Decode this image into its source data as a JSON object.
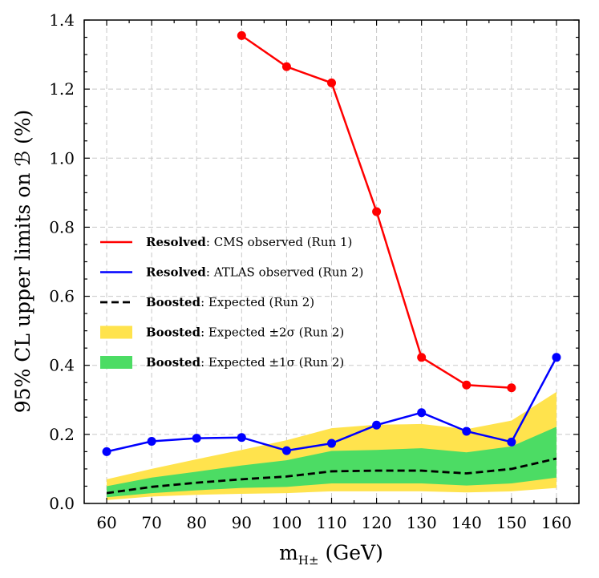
{
  "chart_data": {
    "type": "line",
    "xlabel": "m",
    "xlabel_sub": "H±",
    "xlabel_unit": "(GeV)",
    "ylabel": "95% CL upper limits on ℬ (%)",
    "xlim": [
      55,
      165
    ],
    "ylim": [
      0,
      1.4
    ],
    "xticks": [
      60,
      70,
      80,
      90,
      100,
      110,
      120,
      130,
      140,
      150,
      160
    ],
    "yticks": [
      0.0,
      0.2,
      0.4,
      0.6,
      0.8,
      1.0,
      1.2,
      1.4
    ],
    "ytick_labels": [
      "0.0",
      "0.2",
      "0.4",
      "0.6",
      "0.8",
      "1.0",
      "1.2",
      "1.4"
    ],
    "grid": true,
    "legend_position": "center-left",
    "series": [
      {
        "legend_bold": "Resolved",
        "legend_rest": ": CMS observed (Run 1)",
        "color": "#ff0000",
        "style": "solid-markers",
        "x": [
          90,
          100,
          110,
          120,
          130,
          140,
          150
        ],
        "y": [
          1.355,
          1.265,
          1.218,
          0.845,
          0.423,
          0.343,
          0.335
        ]
      },
      {
        "legend_bold": "Resolved",
        "legend_rest": ": ATLAS observed (Run 2)",
        "color": "#0000ff",
        "style": "solid-markers",
        "x": [
          60,
          70,
          80,
          90,
          100,
          110,
          120,
          130,
          140,
          150,
          160
        ],
        "y": [
          0.15,
          0.18,
          0.189,
          0.191,
          0.153,
          0.174,
          0.227,
          0.263,
          0.209,
          0.178,
          0.423
        ]
      },
      {
        "legend_bold": "Boosted",
        "legend_rest": ": Expected (Run 2)",
        "color": "#000000",
        "style": "dashed",
        "x": [
          60,
          70,
          80,
          90,
          100,
          110,
          120,
          130,
          140,
          150,
          160
        ],
        "y": [
          0.03,
          0.048,
          0.06,
          0.07,
          0.078,
          0.093,
          0.095,
          0.095,
          0.087,
          0.1,
          0.13
        ]
      }
    ],
    "bands": [
      {
        "legend_bold": "Boosted",
        "legend_rest": ": Expected ±2σ (Run 2)",
        "color": "#ffe34d",
        "x": [
          60,
          70,
          80,
          90,
          100,
          110,
          120,
          130,
          140,
          150,
          160
        ],
        "lower": [
          0.01,
          0.02,
          0.025,
          0.028,
          0.03,
          0.035,
          0.035,
          0.035,
          0.032,
          0.035,
          0.045
        ],
        "upper": [
          0.07,
          0.1,
          0.128,
          0.155,
          0.183,
          0.218,
          0.228,
          0.23,
          0.215,
          0.24,
          0.323
        ]
      },
      {
        "legend_bold": "Boosted",
        "legend_rest": ": Expected ±1σ (Run 2)",
        "color": "#4cdc64",
        "x": [
          60,
          70,
          80,
          90,
          100,
          110,
          120,
          130,
          140,
          150,
          160
        ],
        "lower": [
          0.018,
          0.03,
          0.038,
          0.045,
          0.048,
          0.058,
          0.058,
          0.058,
          0.052,
          0.058,
          0.075
        ],
        "upper": [
          0.05,
          0.075,
          0.092,
          0.11,
          0.125,
          0.152,
          0.155,
          0.16,
          0.148,
          0.165,
          0.222
        ]
      }
    ]
  }
}
